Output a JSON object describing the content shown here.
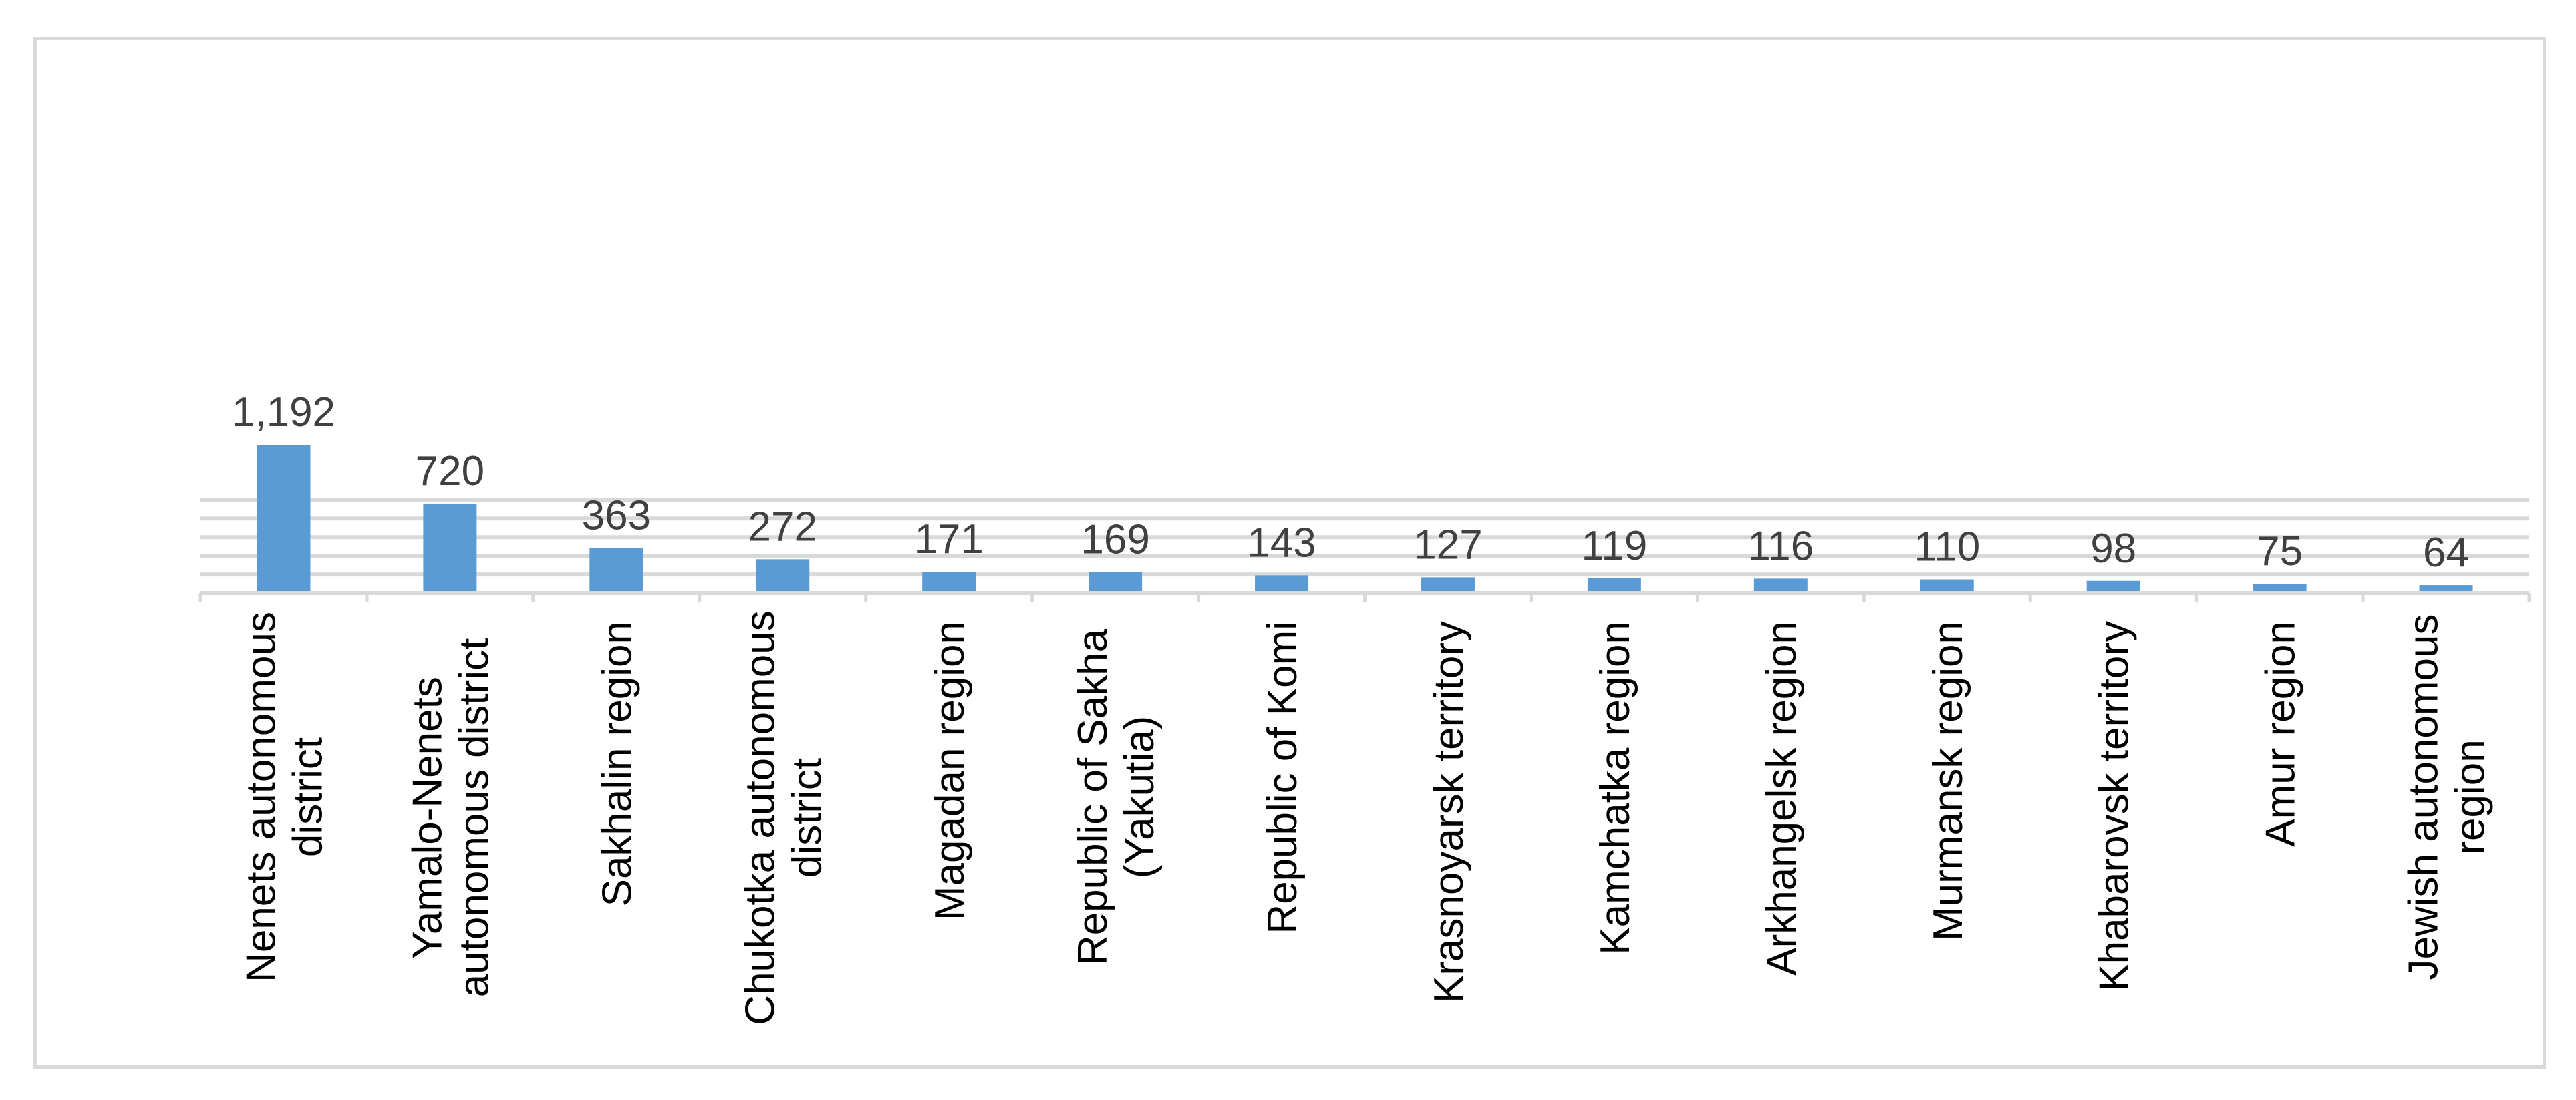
{
  "chart_data": {
    "type": "bar",
    "title": "",
    "xlabel": "",
    "ylabel": "",
    "ylim": [
      0,
      1250
    ],
    "grid": true,
    "legend": "none",
    "bar_color": "#5b9bd5",
    "gridline_color": "#d9d9d9",
    "categories": [
      "Nenets autonomous district",
      "Yamalo-Nenets autonomous district",
      "Sakhalin region",
      "Chukotka autonomous district",
      "Magadan region",
      "Republic of Sakha (Yakutia)",
      "Republic of Komi",
      "Krasnoyarsk territory",
      "Kamchatka region",
      "Arkhangelsk region",
      "Murmansk region",
      "Khabarovsk territory",
      "Amur region",
      "Jewish autonomous region"
    ],
    "category_lines": [
      [
        "Nenets autonomous",
        "district"
      ],
      [
        "Yamalo-Nenets",
        "autonomous district"
      ],
      [
        "Sakhalin region"
      ],
      [
        "Chukotka autonomous",
        "district"
      ],
      [
        "Magadan region"
      ],
      [
        "Republic of Sakha",
        "(Yakutia)"
      ],
      [
        "Republic of Komi"
      ],
      [
        "Krasnoyarsk territory"
      ],
      [
        "Kamchatka region"
      ],
      [
        "Arkhangelsk region"
      ],
      [
        "Murmansk region"
      ],
      [
        "Khabarovsk territory"
      ],
      [
        "Amur region"
      ],
      [
        "Jewish autonomous",
        "region"
      ]
    ],
    "values": [
      1192,
      720,
      363,
      272,
      171,
      169,
      143,
      127,
      119,
      116,
      110,
      98,
      75,
      64
    ],
    "data_labels": [
      "1,192",
      "720",
      "363",
      "272",
      "171",
      "169",
      "143",
      "127",
      "119",
      "116",
      "110",
      "98",
      "75",
      "64"
    ]
  }
}
